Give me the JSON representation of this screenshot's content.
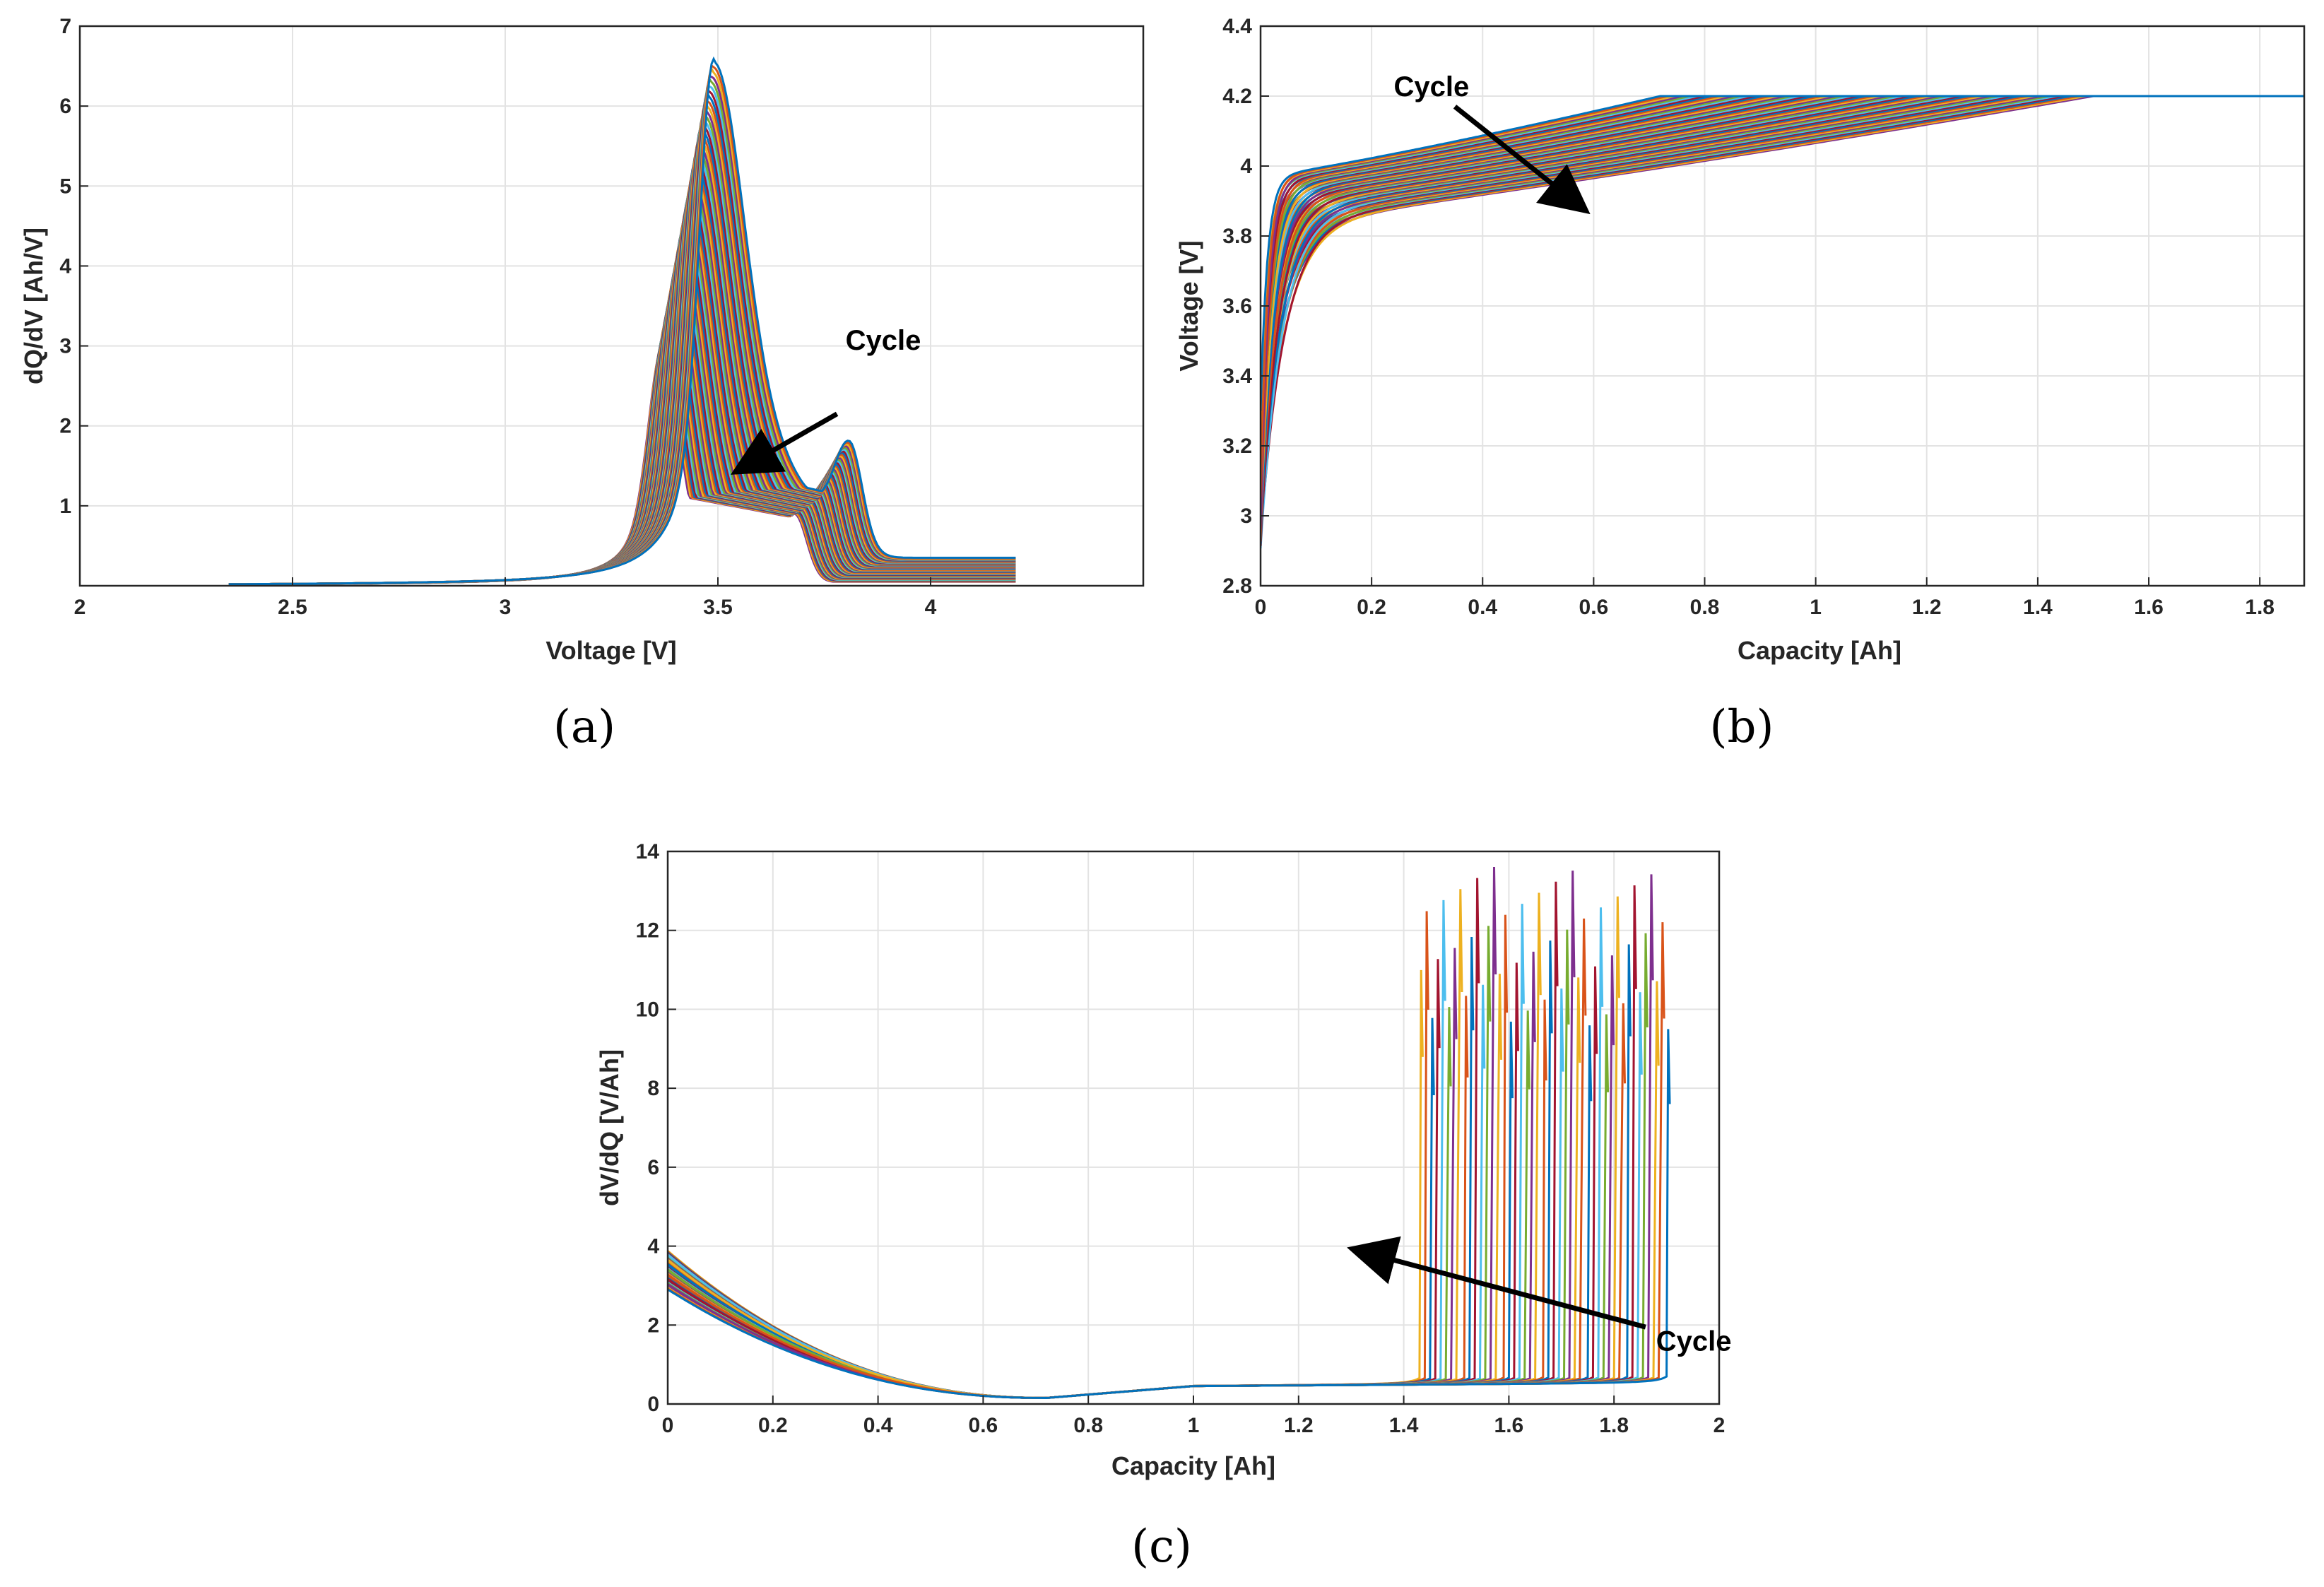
{
  "palette": [
    "#0072BD",
    "#D95319",
    "#EDB120",
    "#7E2F8E",
    "#77AC30",
    "#4DBEEE",
    "#A2142F"
  ],
  "annotation_color": "#000000",
  "chart_data": [
    {
      "id": "a",
      "type": "line",
      "caption": "(a)",
      "xlabel": "Voltage [V]",
      "ylabel": "dQ/dV [Ah/V]",
      "xlim": [
        2,
        4.5
      ],
      "ylim": [
        0,
        7
      ],
      "xticks": [
        2,
        2.5,
        3,
        3.5,
        4
      ],
      "xtick_labels": [
        "2",
        "2.5",
        "3",
        "3.5",
        "4"
      ],
      "yticks": [
        1,
        2,
        3,
        4,
        5,
        6,
        7
      ],
      "ytick_labels": [
        "1",
        "2",
        "3",
        "4",
        "5",
        "6",
        "7"
      ],
      "grid": true,
      "n_cycles": 60,
      "curve_model": {
        "v_start": 2.35,
        "v_end": 4.2,
        "main_peak_first": {
          "voltage": 3.49,
          "height": 6.55
        },
        "main_peak_last": {
          "voltage": 3.37,
          "height": 2.95
        },
        "shoulder_first": {
          "voltage": 3.81,
          "height": 2.0
        },
        "shoulder_last": {
          "voltage": 3.68,
          "height": 1.55
        },
        "tail_value_near_4_2V": [
          0.35,
          0.05
        ]
      },
      "annotation": {
        "text": "Cycle",
        "arrow_from": [
          3.78,
          2.15
        ],
        "arrow_to": [
          3.55,
          1.45
        ],
        "label_at": [
          3.8,
          2.95
        ]
      }
    },
    {
      "id": "b",
      "type": "line",
      "caption": "(b)",
      "xlabel": "Capacity [Ah]",
      "ylabel": "Voltage [V]",
      "xlim": [
        0,
        1.88
      ],
      "ylim": [
        2.8,
        4.4
      ],
      "xticks": [
        0,
        0.2,
        0.4,
        0.6,
        0.8,
        1,
        1.2,
        1.4,
        1.6,
        1.8
      ],
      "xtick_labels": [
        "0",
        "0.2",
        "0.4",
        "0.6",
        "0.8",
        "1",
        "1.2",
        "1.4",
        "1.6",
        "1.8"
      ],
      "yticks": [
        2.8,
        3,
        3.2,
        3.4,
        3.6,
        3.8,
        4,
        4.2,
        4.4
      ],
      "ytick_labels": [
        "2.8",
        "3",
        "3.2",
        "3.4",
        "3.6",
        "3.8",
        "4",
        "4.2",
        "4.4"
      ],
      "grid": true,
      "n_cycles": 60,
      "curve_model": {
        "start_voltage_range": [
          2.9,
          3.3
        ],
        "knee_voltage_first": 3.97,
        "knee_voltage_last": 3.84,
        "cv_voltage": 4.2,
        "cc_end_capacity_first": 0.72,
        "cc_end_capacity_last": 1.5,
        "end_capacity": 1.88
      },
      "annotation": {
        "text": "Cycle",
        "arrow_from": [
          0.35,
          4.17
        ],
        "arrow_to": [
          0.58,
          3.88
        ],
        "label_at": [
          0.24,
          4.2
        ]
      }
    },
    {
      "id": "c",
      "type": "line",
      "caption": "(c)",
      "xlabel": "Capacity [Ah]",
      "ylabel": "dV/dQ [V/Ah]",
      "xlim": [
        0,
        2
      ],
      "ylim": [
        0,
        14
      ],
      "xticks": [
        0,
        0.2,
        0.4,
        0.6,
        0.8,
        1,
        1.2,
        1.4,
        1.6,
        1.8,
        2
      ],
      "xtick_labels": [
        "0",
        "0.2",
        "0.4",
        "0.6",
        "0.8",
        "1",
        "1.2",
        "1.4",
        "1.6",
        "1.8",
        "2"
      ],
      "yticks": [
        0,
        2,
        4,
        6,
        8,
        10,
        12,
        14
      ],
      "ytick_labels": [
        "0",
        "2",
        "4",
        "6",
        "8",
        "10",
        "12",
        "14"
      ],
      "grid": true,
      "n_cycles": 45,
      "curve_model": {
        "start_value_range": [
          2.9,
          3.9
        ],
        "minimum": {
          "capacity": 0.72,
          "value": 0.15
        },
        "plateau_value": 0.45,
        "rise_capacity_first": 1.92,
        "rise_capacity_last": 1.45,
        "peak_value_range": [
          9.5,
          13.7
        ]
      },
      "annotation": {
        "text": "Cycle",
        "arrow_from": [
          1.86,
          1.95
        ],
        "arrow_to": [
          1.31,
          3.9
        ],
        "label_at": [
          1.88,
          1.35
        ]
      }
    }
  ]
}
